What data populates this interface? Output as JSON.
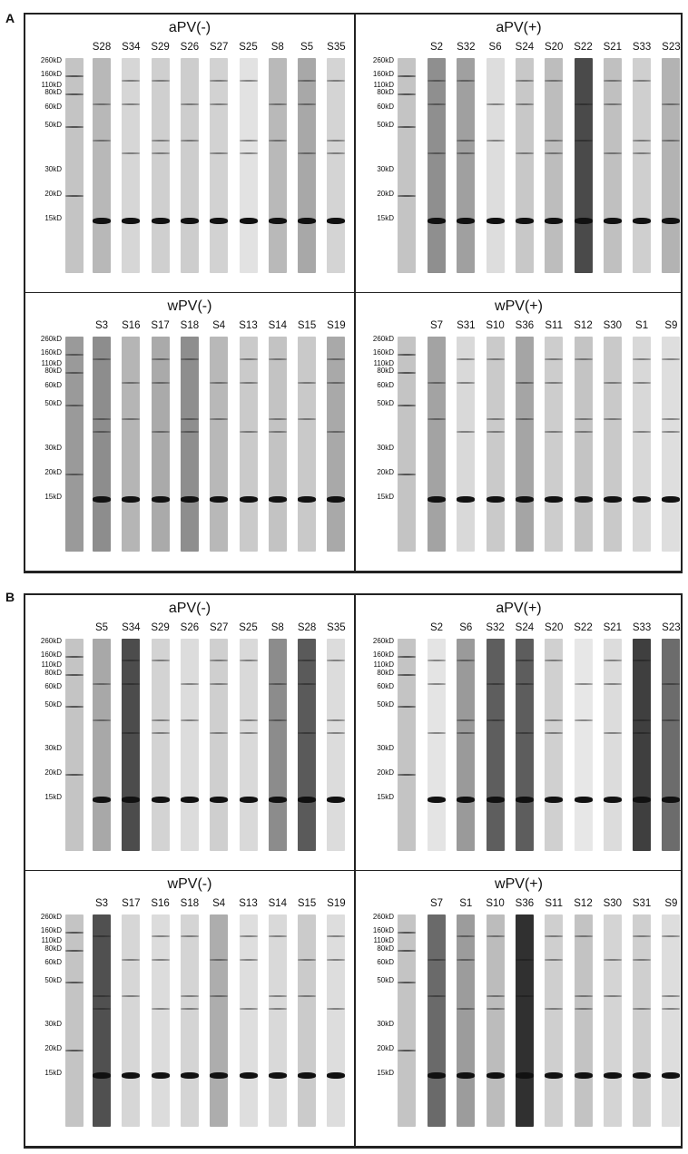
{
  "figure_letters": [
    "A",
    "B"
  ],
  "markers": [
    "260kD",
    "160kD",
    "110kD",
    "80kD",
    "60kD",
    "50kD",
    "30kD",
    "20kD",
    "15kD"
  ],
  "colors": {
    "border": "#222222",
    "band": "#111111",
    "background": "#ffffff"
  },
  "sections": [
    {
      "letter": "A",
      "panels": [
        {
          "title": "aPV(-)",
          "lanes": [
            "S28",
            "S34",
            "S29",
            "S26",
            "S27",
            "S25",
            "S8",
            "S5",
            "S35"
          ],
          "tones": [
            "#b8b8b8",
            "#d6d6d6",
            "#cfcfcf",
            "#cdcdcd",
            "#d2d2d2",
            "#e2e2e2",
            "#b9b9b9",
            "#a8a8a8",
            "#d4d4d4"
          ]
        },
        {
          "title": "aPV(+)",
          "lanes": [
            "S2",
            "S32",
            "S6",
            "S24",
            "S20",
            "S22",
            "S21",
            "S33",
            "S23"
          ],
          "tones": [
            "#8f8f8f",
            "#a0a0a0",
            "#dddddd",
            "#c8c8c8",
            "#bdbdbd",
            "#4a4a4a",
            "#c0c0c0",
            "#cfcfcf",
            "#b3b3b3"
          ]
        },
        {
          "title": "wPV(-)",
          "lanes": [
            "S3",
            "S16",
            "S17",
            "S18",
            "S4",
            "S13",
            "S14",
            "S15",
            "S19"
          ],
          "tones": [
            "#8d8d8d",
            "#b5b5b5",
            "#aaaaaa",
            "#8e8e8e",
            "#b8b8b8",
            "#cacaca",
            "#c3c3c3",
            "#c9c9c9",
            "#a9a9a9"
          ]
        },
        {
          "title": "wPV(+)",
          "lanes": [
            "S7",
            "S31",
            "S10",
            "S36",
            "S11",
            "S12",
            "S30",
            "S1",
            "S9"
          ],
          "tones": [
            "#a3a3a3",
            "#d9d9d9",
            "#cacaca",
            "#a5a5a5",
            "#cdcdcd",
            "#c4c4c4",
            "#c9c9c9",
            "#d8d8d8",
            "#dedede"
          ]
        }
      ]
    },
    {
      "letter": "B",
      "panels": [
        {
          "title": "aPV(-)",
          "lanes": [
            "S5",
            "S34",
            "S29",
            "S26",
            "S27",
            "S25",
            "S8",
            "S28",
            "S35"
          ],
          "tones": [
            "#a8a8a8",
            "#4c4c4c",
            "#d3d3d3",
            "#dcdcdc",
            "#cfcfcf",
            "#d9d9d9",
            "#8c8c8c",
            "#5a5a5a",
            "#dcdcdc"
          ]
        },
        {
          "title": "aPV(+)",
          "lanes": [
            "S2",
            "S6",
            "S32",
            "S24",
            "S20",
            "S22",
            "S21",
            "S33",
            "S23"
          ],
          "tones": [
            "#e4e4e4",
            "#9a9a9a",
            "#5e5e5e",
            "#5d5d5d",
            "#d0d0d0",
            "#e7e7e7",
            "#dcdcdc",
            "#3f3f3f",
            "#6c6c6c"
          ]
        },
        {
          "title": "wPV(-)",
          "lanes": [
            "S3",
            "S17",
            "S16",
            "S18",
            "S4",
            "S13",
            "S14",
            "S15",
            "S19"
          ],
          "tones": [
            "#505050",
            "#d6d6d6",
            "#dcdcdc",
            "#d4d4d4",
            "#adadad",
            "#dedede",
            "#d9d9d9",
            "#cbcbcb",
            "#dddddd"
          ]
        },
        {
          "title": "wPV(+)",
          "lanes": [
            "S7",
            "S1",
            "S10",
            "S36",
            "S11",
            "S12",
            "S30",
            "S31",
            "S9"
          ],
          "tones": [
            "#6a6a6a",
            "#9c9c9c",
            "#bcbcbc",
            "#303030",
            "#cfcfcf",
            "#c3c3c3",
            "#d4d4d4",
            "#cfcfcf",
            "#dddddd"
          ]
        }
      ]
    }
  ]
}
